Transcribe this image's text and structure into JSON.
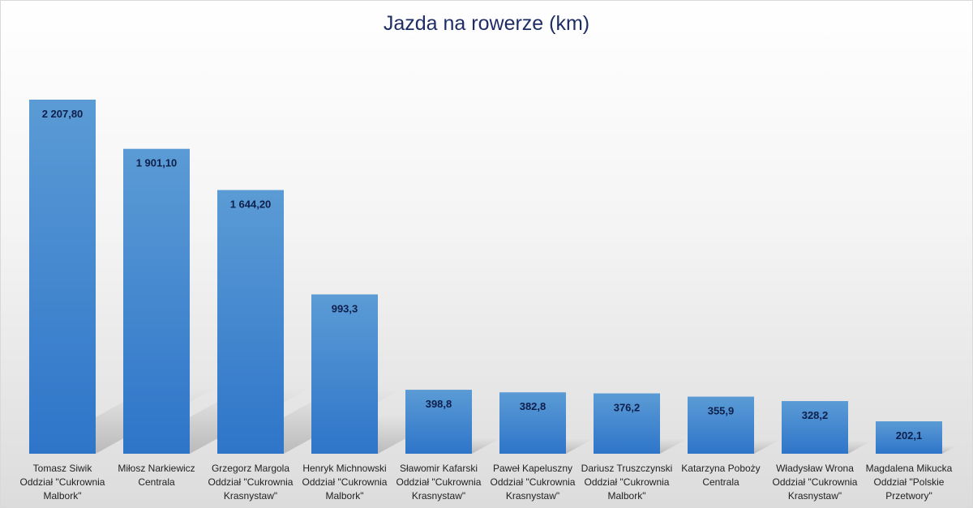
{
  "chart_data": {
    "type": "bar",
    "title": "Jazda na rowerze (km)",
    "categories": [
      [
        "Tomasz Siwik",
        "Oddział \"Cukrownia",
        "Malbork\""
      ],
      [
        "Miłosz Narkiewicz",
        "Centrala"
      ],
      [
        "Grzegorz Margola",
        "Oddział \"Cukrownia",
        "Krasnystaw\""
      ],
      [
        "Henryk Michnowski",
        "Oddział \"Cukrownia",
        "Malbork\""
      ],
      [
        "Sławomir Kafarski",
        "Oddział \"Cukrownia",
        "Krasnystaw\""
      ],
      [
        "Paweł Kapeluszny",
        "Oddział \"Cukrownia",
        "Krasnystaw\""
      ],
      [
        "Dariusz Truszczynski",
        "Oddział \"Cukrownia",
        "Malbork\""
      ],
      [
        "Katarzyna Poboży",
        "Centrala"
      ],
      [
        "Władysław Wrona",
        "Oddział \"Cukrownia",
        "Krasnystaw\""
      ],
      [
        "Magdalena Mikucka",
        "Oddział \"Polskie",
        "Przetwory\""
      ]
    ],
    "values": [
      2207.8,
      1901.1,
      1644.2,
      993.3,
      398.8,
      382.8,
      376.2,
      355.9,
      328.2,
      202.1
    ],
    "data_labels": [
      "2 207,80",
      "1 901,10",
      "1 644,20",
      "993,3",
      "398,8",
      "382,8",
      "376,2",
      "355,9",
      "328,2",
      "202,1"
    ],
    "ylim": [
      0,
      2207.8
    ],
    "grid": false,
    "legend": "none",
    "colors": {
      "bar_top": "#5b9bd5",
      "bar_bottom": "#2e75c9",
      "label": "#0d1f4a",
      "title": "#1f2d66"
    }
  }
}
